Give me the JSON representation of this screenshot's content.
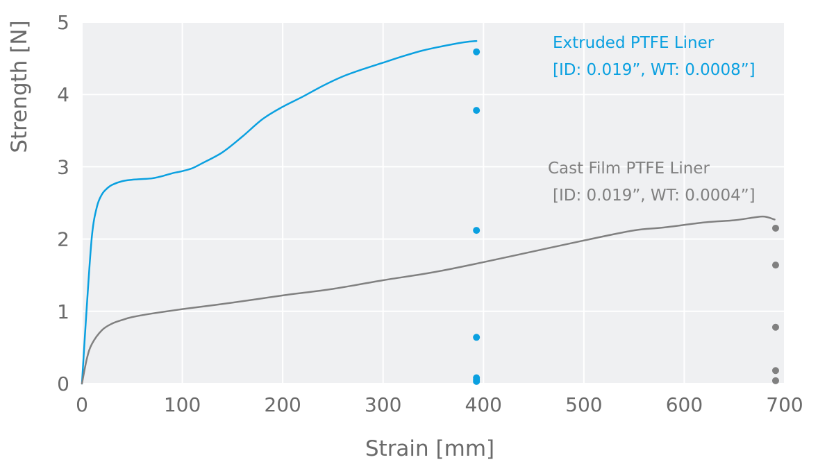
{
  "chart_data": {
    "type": "line",
    "xlabel": "Strain [mm]",
    "ylabel": "Strength [N]",
    "xlim": [
      0,
      700
    ],
    "ylim": [
      0,
      5
    ],
    "xticks": [
      0,
      100,
      200,
      300,
      400,
      500,
      600,
      700
    ],
    "yticks": [
      0,
      1,
      2,
      3,
      4,
      5
    ],
    "grid": true,
    "background": "#eff0f2",
    "series": [
      {
        "name_line1": "Extruded PTFE Liner",
        "name_line2": "[ID: 0.019”, WT: 0.0008”]",
        "color": "#0aa0e0",
        "x": [
          0,
          5,
          10,
          15,
          20,
          25,
          30,
          40,
          50,
          60,
          70,
          80,
          90,
          100,
          110,
          120,
          140,
          160,
          180,
          200,
          220,
          240,
          260,
          280,
          300,
          320,
          340,
          360,
          375,
          385,
          393
        ],
        "y": [
          0,
          1.1,
          2.05,
          2.45,
          2.62,
          2.7,
          2.75,
          2.8,
          2.82,
          2.83,
          2.84,
          2.87,
          2.91,
          2.94,
          2.98,
          3.05,
          3.2,
          3.42,
          3.66,
          3.83,
          3.97,
          4.12,
          4.25,
          4.35,
          4.44,
          4.53,
          4.61,
          4.67,
          4.71,
          4.73,
          4.74
        ],
        "points": {
          "x": [
            393,
            393,
            393,
            393,
            393,
            393,
            393
          ],
          "y": [
            4.59,
            3.78,
            2.12,
            0.64,
            0.08,
            0.05,
            0.03
          ]
        }
      },
      {
        "name_line1": "Cast Film PTFE Liner",
        "name_line2": "[ID: 0.019”, WT: 0.0004”]",
        "color": "#808080",
        "x": [
          0,
          5,
          10,
          20,
          30,
          40,
          50,
          70,
          100,
          150,
          200,
          250,
          300,
          350,
          400,
          450,
          500,
          550,
          580,
          620,
          650,
          670,
          680,
          690
        ],
        "y": [
          0,
          0.35,
          0.55,
          0.74,
          0.83,
          0.88,
          0.92,
          0.97,
          1.03,
          1.12,
          1.22,
          1.31,
          1.43,
          1.54,
          1.68,
          1.83,
          1.98,
          2.12,
          2.16,
          2.23,
          2.26,
          2.3,
          2.31,
          2.27
        ],
        "points": {
          "x": [
            691,
            691,
            691,
            691,
            691
          ],
          "y": [
            2.15,
            1.64,
            0.78,
            0.18,
            0.04
          ]
        }
      }
    ]
  }
}
